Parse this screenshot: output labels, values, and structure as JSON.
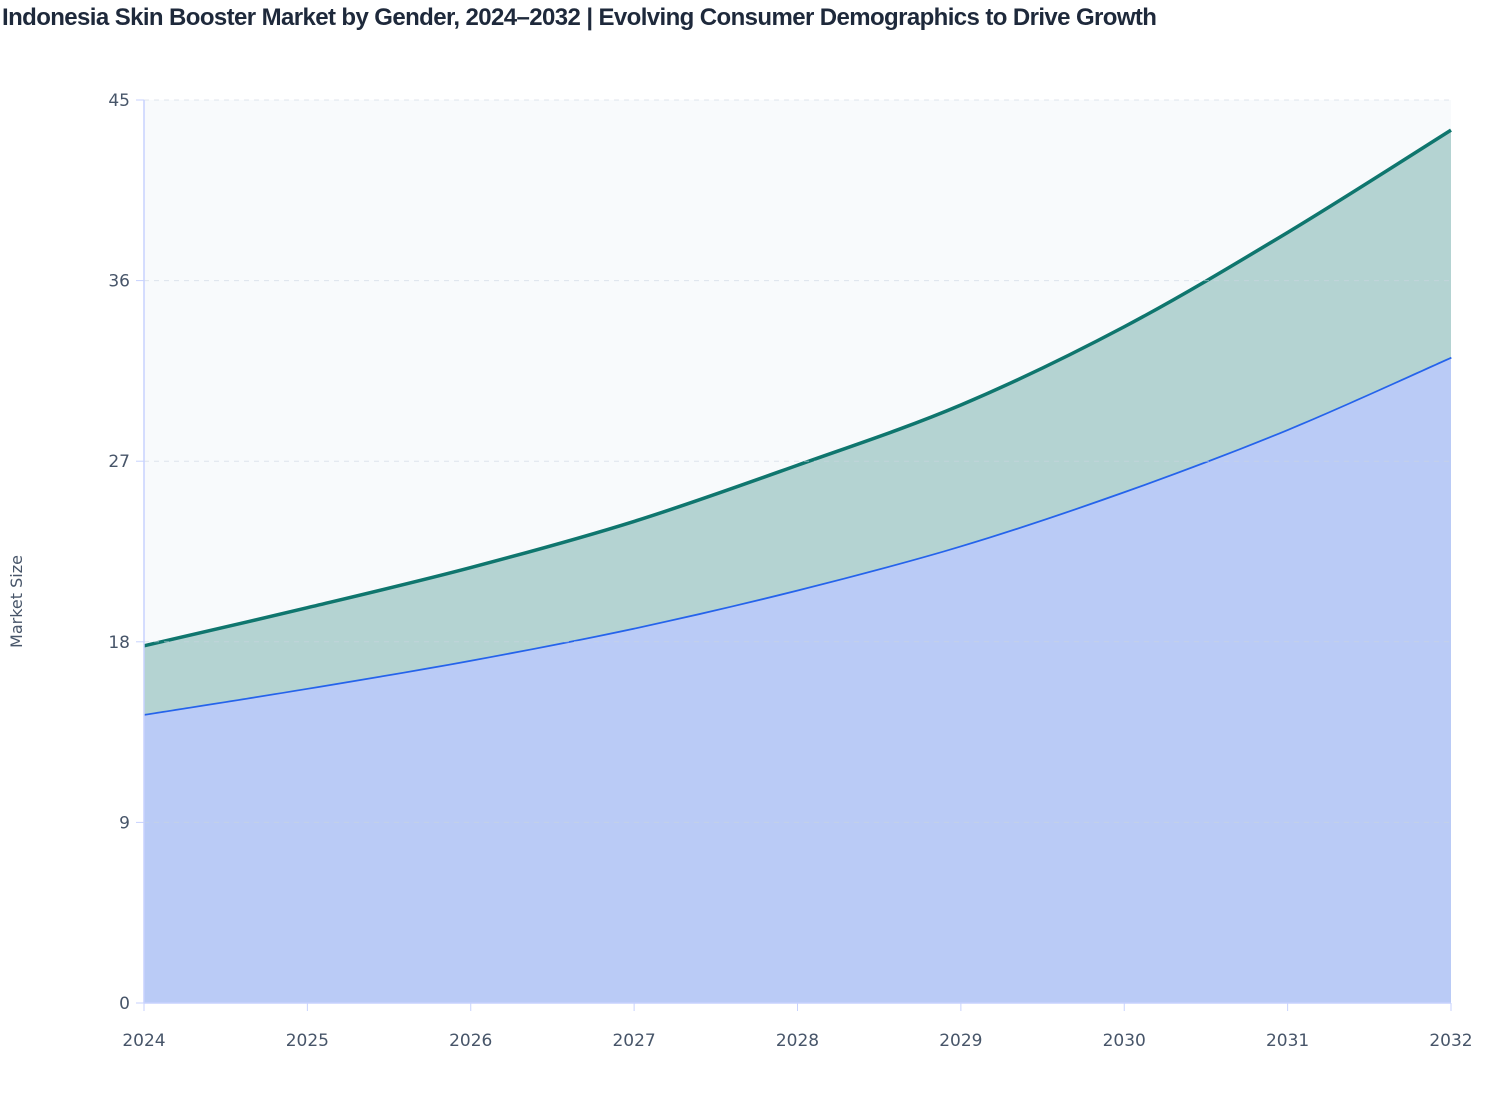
{
  "chart_data": {
    "type": "area",
    "stacked": true,
    "title": "Indonesia Skin Booster Market by Gender, 2024–2032 | Evolving Consumer Demographics to Drive Growth",
    "xlabel": "",
    "ylabel": "Market Size",
    "x": [
      2024,
      2025,
      2026,
      2027,
      2028,
      2029,
      2030,
      2031,
      2032
    ],
    "ylim": [
      0,
      45
    ],
    "yticks": [
      0,
      9,
      18,
      27,
      36,
      45
    ],
    "grid": true,
    "legend": "none",
    "series": [
      {
        "values": [
          14.4,
          15.7,
          17.1,
          18.7,
          20.6,
          22.8,
          25.5,
          28.6,
          32.2
        ],
        "color": "#2563eb",
        "fill": "#bacbf6"
      },
      {
        "values": [
          3.4,
          4.0,
          4.6,
          5.3,
          6.2,
          7.0,
          8.2,
          9.8,
          11.3
        ],
        "color": "#0f766e",
        "fill": "#b4d3d2"
      }
    ],
    "plot_background": "#f8fafc"
  }
}
